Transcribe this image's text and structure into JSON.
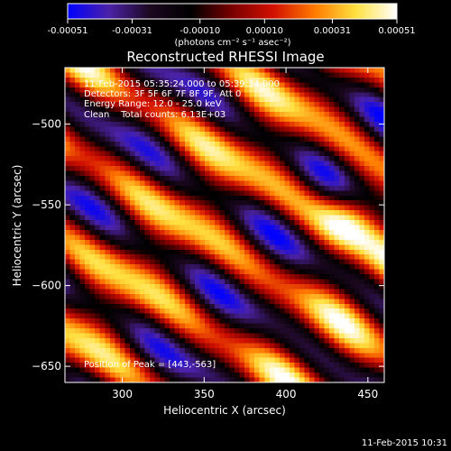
{
  "chart_data": {
    "type": "heatmap",
    "title": "Reconstructed RHESSI Image",
    "xlabel": "Heliocentric X (arcsec)",
    "ylabel": "Heliocentric Y (arcsec)",
    "xlim": [
      265,
      460
    ],
    "ylim": [
      -660,
      -465
    ],
    "x_ticks": [
      300,
      350,
      400,
      450
    ],
    "y_ticks": [
      -500,
      -550,
      -600,
      -650
    ],
    "colorbar": {
      "min": -0.00051,
      "max": 0.00051,
      "ticks": [
        "-0.00051",
        "-0.00031",
        "-0.00010",
        "0.00010",
        "0.00031",
        "0.00051"
      ],
      "unit": "(photons cm⁻² s⁻¹ asec⁻²)",
      "colormap": [
        "#0000ff",
        "#4b22a8",
        "#1c0820",
        "#000000",
        "#7a0000",
        "#d21000",
        "#ff7a00",
        "#ffe040",
        "#ffffff"
      ]
    },
    "annotations": [
      "11-Feb-2015 05:35:24.000 to 05:39:34.000",
      "Detectors: 3F 5F 6F 7F 8F 9F, Att 0",
      "Energy Range: 12.0 - 25.0 keV",
      "Clean    Total counts: 6.13E+03"
    ],
    "peak_label": "Position of Peak = [443,-563]",
    "peak_position": [
      443,
      -563
    ],
    "footer_timestamp": "11-Feb-2015 10:31"
  }
}
